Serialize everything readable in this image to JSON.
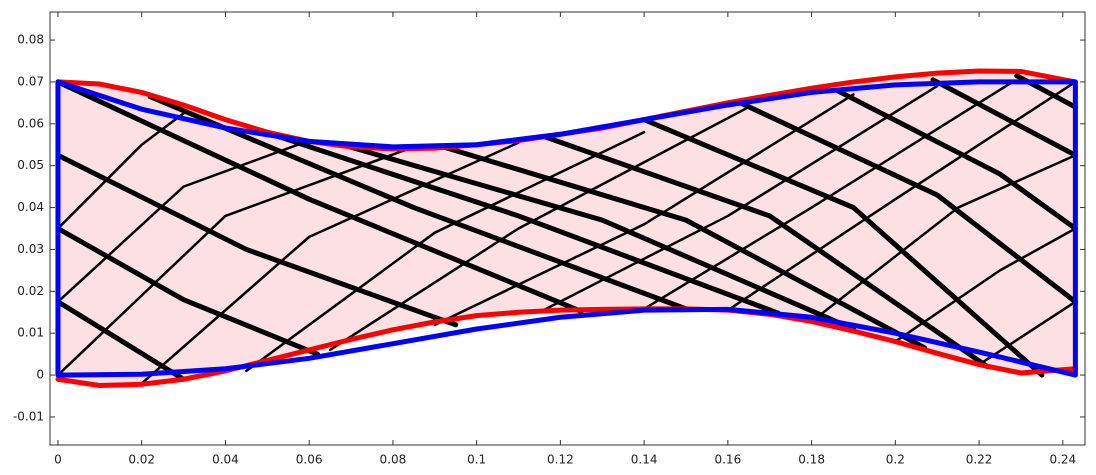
{
  "chart_data": {
    "type": "line",
    "xlim": [
      -0.0019,
      0.2453
    ],
    "ylim": [
      -0.0167,
      0.0867
    ],
    "xticks": [
      0,
      0.02,
      0.04,
      0.06,
      0.08,
      0.1,
      0.12,
      0.14,
      0.16,
      0.18,
      0.2,
      0.22,
      0.24
    ],
    "yticks": [
      -0.01,
      0,
      0.01,
      0.02,
      0.03,
      0.04,
      0.05,
      0.06,
      0.07,
      0.08
    ],
    "area_fill": "#fde0e4",
    "series": [
      {
        "color": "#ff0000",
        "width": 5,
        "x": [
          0,
          0.01,
          0.02,
          0.03,
          0.04,
          0.05,
          0.06,
          0.07,
          0.08,
          0.09,
          0.1,
          0.11,
          0.12,
          0.13,
          0.14,
          0.15,
          0.16,
          0.17,
          0.18,
          0.19,
          0.2,
          0.21,
          0.22,
          0.23,
          0.243
        ],
        "values": [
          0.07,
          0.0695,
          0.0675,
          0.0645,
          0.061,
          0.058,
          0.0558,
          0.0545,
          0.054,
          0.0542,
          0.055,
          0.056,
          0.0575,
          0.059,
          0.061,
          0.063,
          0.065,
          0.0668,
          0.0685,
          0.07,
          0.0712,
          0.0721,
          0.0726,
          0.0725,
          0.07
        ]
      },
      {
        "color": "#ff0000",
        "width": 5,
        "x": [
          0,
          0.01,
          0.02,
          0.03,
          0.04,
          0.05,
          0.06,
          0.07,
          0.08,
          0.09,
          0.1,
          0.11,
          0.12,
          0.13,
          0.14,
          0.15,
          0.16,
          0.17,
          0.18,
          0.19,
          0.2,
          0.21,
          0.22,
          0.23,
          0.243
        ],
        "values": [
          -0.001,
          -0.0025,
          -0.0022,
          -0.001,
          0.001,
          0.0035,
          0.006,
          0.0085,
          0.0108,
          0.0127,
          0.0142,
          0.015,
          0.0155,
          0.0157,
          0.0158,
          0.0158,
          0.0155,
          0.0145,
          0.0128,
          0.0105,
          0.008,
          0.0052,
          0.0025,
          0.0005,
          0.0015
        ]
      },
      {
        "color": "#000000",
        "width": 5,
        "x": [
          0,
          0.03
        ],
        "values": [
          0.0175,
          -0.001
        ]
      },
      {
        "color": "#000000",
        "width": 5,
        "x": [
          0,
          0.03,
          0.062
        ],
        "values": [
          0.035,
          0.018,
          0.005
        ]
      },
      {
        "color": "#000000",
        "width": 5,
        "x": [
          0,
          0.045,
          0.095
        ],
        "values": [
          0.0525,
          0.03,
          0.012
        ]
      },
      {
        "color": "#000000",
        "width": 5,
        "x": [
          0,
          0.06,
          0.125
        ],
        "values": [
          0.07,
          0.042,
          0.0152
        ]
      },
      {
        "color": "#000000",
        "width": 5,
        "x": [
          0.022,
          0.085,
          0.15
        ],
        "values": [
          0.0665,
          0.04,
          0.0158
        ]
      },
      {
        "color": "#000000",
        "width": 5,
        "x": [
          0.045,
          0.11,
          0.172
        ],
        "values": [
          0.0595,
          0.038,
          0.0148
        ]
      },
      {
        "color": "#000000",
        "width": 5,
        "x": [
          0.068,
          0.13,
          0.19
        ],
        "values": [
          0.055,
          0.037,
          0.011
        ]
      },
      {
        "color": "#000000",
        "width": 5,
        "x": [
          0.092,
          0.15,
          0.207
        ],
        "values": [
          0.0545,
          0.037,
          0.0065
        ]
      },
      {
        "color": "#000000",
        "width": 5,
        "x": [
          0.116,
          0.17,
          0.222
        ],
        "values": [
          0.057,
          0.038,
          0.002
        ]
      },
      {
        "color": "#000000",
        "width": 5,
        "x": [
          0.14,
          0.19,
          0.235
        ],
        "values": [
          0.061,
          0.04,
          0.0
        ]
      },
      {
        "color": "#000000",
        "width": 5,
        "x": [
          0.163,
          0.21,
          0.243
        ],
        "values": [
          0.065,
          0.043,
          0.0175
        ]
      },
      {
        "color": "#000000",
        "width": 5,
        "x": [
          0.186,
          0.225,
          0.243
        ],
        "values": [
          0.068,
          0.048,
          0.035
        ]
      },
      {
        "color": "#000000",
        "width": 5,
        "x": [
          0.209,
          0.243
        ],
        "values": [
          0.0705,
          0.0525
        ]
      },
      {
        "color": "#000000",
        "width": 5,
        "x": [
          0.229,
          0.243
        ],
        "values": [
          0.0715,
          0.064
        ]
      },
      {
        "color": "#000000",
        "width": 2.5,
        "x": [
          0,
          0.02,
          0.03
        ],
        "values": [
          0.035,
          0.055,
          0.0625
        ]
      },
      {
        "color": "#000000",
        "width": 2.5,
        "x": [
          0,
          0.03,
          0.06
        ],
        "values": [
          0.0175,
          0.045,
          0.056
        ]
      },
      {
        "color": "#000000",
        "width": 2.5,
        "x": [
          0,
          0.04,
          0.085
        ],
        "values": [
          0,
          0.038,
          0.0545
        ]
      },
      {
        "color": "#000000",
        "width": 2.5,
        "x": [
          0.02,
          0.06,
          0.11
        ],
        "values": [
          -0.002,
          0.033,
          0.0555
        ]
      },
      {
        "color": "#000000",
        "width": 2.5,
        "x": [
          0.045,
          0.09,
          0.14
        ],
        "values": [
          0.001,
          0.034,
          0.058
        ]
      },
      {
        "color": "#000000",
        "width": 2.5,
        "x": [
          0.065,
          0.11,
          0.165
        ],
        "values": [
          0.006,
          0.035,
          0.064
        ]
      },
      {
        "color": "#000000",
        "width": 2.5,
        "x": [
          0.09,
          0.14,
          0.19
        ],
        "values": [
          0.012,
          0.036,
          0.067
        ]
      },
      {
        "color": "#000000",
        "width": 2.5,
        "x": [
          0.115,
          0.16,
          0.21
        ],
        "values": [
          0.015,
          0.038,
          0.069
        ]
      },
      {
        "color": "#000000",
        "width": 2.5,
        "x": [
          0.14,
          0.18,
          0.228
        ],
        "values": [
          0.0158,
          0.04,
          0.07
        ]
      },
      {
        "color": "#000000",
        "width": 2.5,
        "x": [
          0.16,
          0.2,
          0.243
        ],
        "values": [
          0.0155,
          0.042,
          0.07
        ]
      },
      {
        "color": "#000000",
        "width": 2.5,
        "x": [
          0.18,
          0.215,
          0.243
        ],
        "values": [
          0.0128,
          0.04,
          0.0525
        ]
      },
      {
        "color": "#000000",
        "width": 2.5,
        "x": [
          0.2,
          0.225,
          0.243
        ],
        "values": [
          0.008,
          0.025,
          0.035
        ]
      },
      {
        "color": "#000000",
        "width": 2.5,
        "x": [
          0.22,
          0.243
        ],
        "values": [
          0.0025,
          0.0175
        ]
      },
      {
        "color": "#0000ff",
        "width": 5,
        "x": [
          0,
          0.02,
          0.04,
          0.06,
          0.08,
          0.1,
          0.12,
          0.14,
          0.16,
          0.18,
          0.2,
          0.22,
          0.243,
          0.243,
          0.22,
          0.2,
          0.18,
          0.16,
          0.14,
          0.12,
          0.1,
          0.08,
          0.06,
          0.04,
          0.02,
          0,
          0
        ],
        "values": [
          0.07,
          0.0635,
          0.059,
          0.0558,
          0.0545,
          0.055,
          0.0575,
          0.061,
          0.0645,
          0.0675,
          0.0693,
          0.07,
          0.07,
          0,
          0.0055,
          0.01,
          0.0138,
          0.0157,
          0.0155,
          0.0138,
          0.011,
          0.0075,
          0.004,
          0.0015,
          0.0002,
          0,
          0.07
        ]
      }
    ]
  }
}
